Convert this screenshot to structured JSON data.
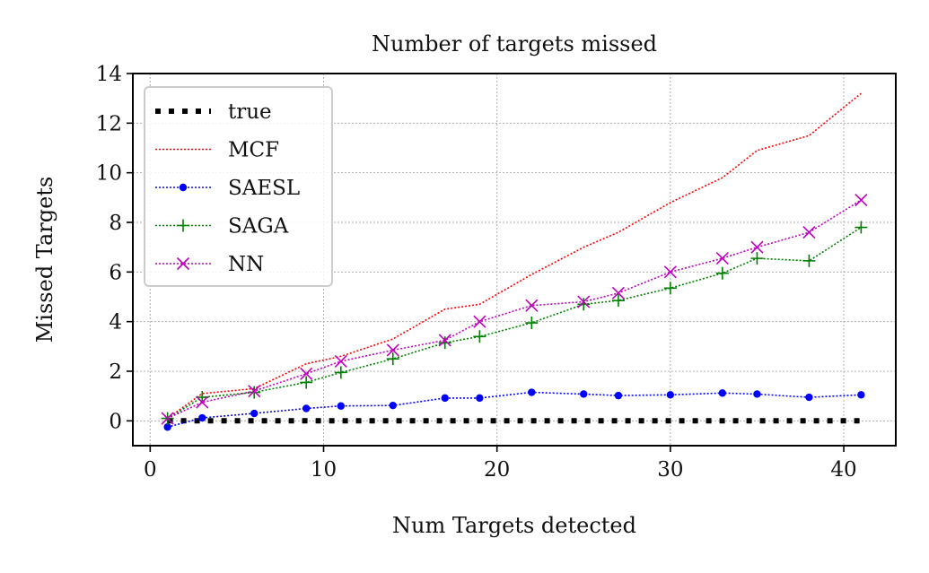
{
  "chart_data": {
    "type": "line",
    "title": "Number of targets missed",
    "xlabel": "Num Targets detected",
    "ylabel": "Missed Targets",
    "xlim": [
      -1,
      43
    ],
    "ylim": [
      -1,
      14
    ],
    "xticks": [
      0,
      10,
      20,
      30,
      40
    ],
    "yticks": [
      0,
      2,
      4,
      6,
      8,
      10,
      12,
      14
    ],
    "grid": true,
    "legend_position": "top-left",
    "series": [
      {
        "name": "true",
        "color": "#000000",
        "line_style": "dotted-thick",
        "marker": "none",
        "x": [
          1,
          3,
          6,
          9,
          11,
          14,
          17,
          19,
          22,
          25,
          27,
          30,
          33,
          35,
          38,
          41
        ],
        "y": [
          0,
          0,
          0,
          0,
          0,
          0,
          0,
          0,
          0,
          0,
          0,
          0,
          0,
          0,
          0,
          0
        ]
      },
      {
        "name": "MCF",
        "color": "#ff0000",
        "line_style": "dotted",
        "marker": "none",
        "x": [
          1,
          3,
          6,
          9,
          11,
          14,
          17,
          19,
          22,
          25,
          27,
          30,
          33,
          35,
          38,
          41
        ],
        "y": [
          0.1,
          1.1,
          1.3,
          2.3,
          2.6,
          3.3,
          4.5,
          4.7,
          5.9,
          7.0,
          7.6,
          8.8,
          9.8,
          10.9,
          11.5,
          13.2
        ]
      },
      {
        "name": "SAESL",
        "color": "#0000ff",
        "line_style": "dotted",
        "marker": "dot",
        "x": [
          1,
          3,
          6,
          9,
          11,
          14,
          17,
          19,
          22,
          25,
          27,
          30,
          33,
          35,
          38,
          41
        ],
        "y": [
          -0.25,
          0.12,
          0.3,
          0.5,
          0.6,
          0.62,
          0.92,
          0.92,
          1.15,
          1.08,
          1.02,
          1.05,
          1.12,
          1.08,
          0.95,
          1.05
        ]
      },
      {
        "name": "SAGA",
        "color": "#008000",
        "line_style": "dotted",
        "marker": "plus",
        "x": [
          1,
          3,
          6,
          9,
          11,
          14,
          17,
          19,
          22,
          25,
          27,
          30,
          33,
          35,
          38,
          41
        ],
        "y": [
          0.1,
          0.95,
          1.15,
          1.55,
          1.95,
          2.5,
          3.15,
          3.4,
          3.95,
          4.7,
          4.85,
          5.35,
          5.95,
          6.55,
          6.45,
          7.8
        ]
      },
      {
        "name": "NN",
        "color": "#bf00bf",
        "line_style": "dotted",
        "marker": "x",
        "x": [
          1,
          3,
          6,
          9,
          11,
          14,
          17,
          19,
          22,
          25,
          27,
          30,
          33,
          35,
          38,
          41
        ],
        "y": [
          0.1,
          0.75,
          1.2,
          1.9,
          2.4,
          2.85,
          3.25,
          4.0,
          4.65,
          4.8,
          5.15,
          6.0,
          6.55,
          7.0,
          7.6,
          8.9
        ]
      }
    ]
  }
}
